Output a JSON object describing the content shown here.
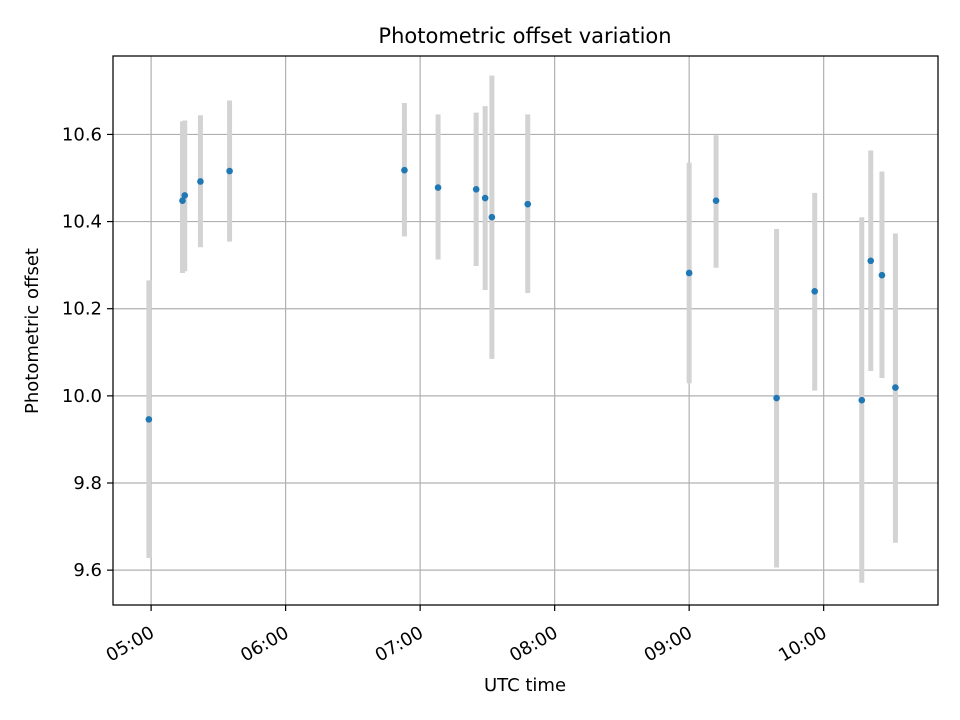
{
  "chart_data": {
    "type": "scatter",
    "title": "Photometric offset variation",
    "xlabel": "UTC time",
    "ylabel": "Photometric offset",
    "x_axis_type": "time",
    "xlim": [
      "04:43",
      "10:51"
    ],
    "ylim": [
      9.52,
      10.78
    ],
    "grid": true,
    "x_ticks": [
      "05:00",
      "06:00",
      "07:00",
      "08:00",
      "09:00",
      "10:00"
    ],
    "y_ticks": [
      "9.6",
      "9.8",
      "10.0",
      "10.2",
      "10.4",
      "10.6"
    ],
    "colors": {
      "point": "#1f77b4",
      "errorbar": "#d3d3d3",
      "grid": "#b0b0b0"
    },
    "points": [
      {
        "x": "04:59",
        "y": 9.946,
        "yerr_low": 9.628,
        "yerr_high": 10.265
      },
      {
        "x": "05:14",
        "y": 10.448,
        "yerr_low": 10.282,
        "yerr_high": 10.63
      },
      {
        "x": "05:15",
        "y": 10.46,
        "yerr_low": 10.286,
        "yerr_high": 10.632
      },
      {
        "x": "05:22",
        "y": 10.492,
        "yerr_low": 10.341,
        "yerr_high": 10.644
      },
      {
        "x": "05:35",
        "y": 10.516,
        "yerr_low": 10.354,
        "yerr_high": 10.678
      },
      {
        "x": "06:53",
        "y": 10.518,
        "yerr_low": 10.366,
        "yerr_high": 10.672
      },
      {
        "x": "07:08",
        "y": 10.478,
        "yerr_low": 10.313,
        "yerr_high": 10.646
      },
      {
        "x": "07:25",
        "y": 10.474,
        "yerr_low": 10.298,
        "yerr_high": 10.65
      },
      {
        "x": "07:29",
        "y": 10.454,
        "yerr_low": 10.243,
        "yerr_high": 10.665
      },
      {
        "x": "07:32",
        "y": 10.41,
        "yerr_low": 10.085,
        "yerr_high": 10.735
      },
      {
        "x": "07:48",
        "y": 10.44,
        "yerr_low": 10.236,
        "yerr_high": 10.646
      },
      {
        "x": "09:00",
        "y": 10.282,
        "yerr_low": 10.029,
        "yerr_high": 10.535
      },
      {
        "x": "09:12",
        "y": 10.448,
        "yerr_low": 10.294,
        "yerr_high": 10.598
      },
      {
        "x": "09:39",
        "y": 9.995,
        "yerr_low": 9.606,
        "yerr_high": 10.383
      },
      {
        "x": "09:56",
        "y": 10.24,
        "yerr_low": 10.012,
        "yerr_high": 10.466
      },
      {
        "x": "10:17",
        "y": 9.99,
        "yerr_low": 9.571,
        "yerr_high": 10.41
      },
      {
        "x": "10:21",
        "y": 10.31,
        "yerr_low": 10.057,
        "yerr_high": 10.563
      },
      {
        "x": "10:26",
        "y": 10.277,
        "yerr_low": 10.041,
        "yerr_high": 10.515
      },
      {
        "x": "10:32",
        "y": 10.019,
        "yerr_low": 9.663,
        "yerr_high": 10.373
      }
    ]
  }
}
